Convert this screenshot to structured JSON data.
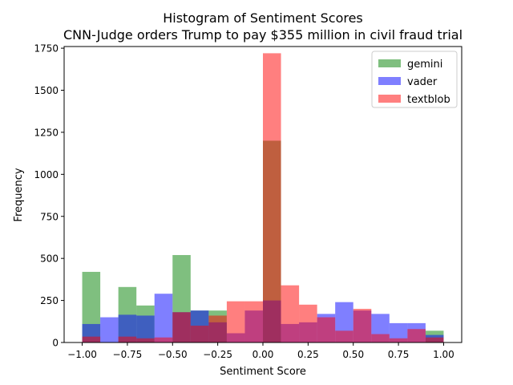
{
  "chart_data": {
    "type": "histogram",
    "title_line1": "Histogram of Sentiment Scores",
    "title_line2": "CNN-Judge orders Trump to pay $355 million in civil fraud trial",
    "xlabel": "Sentiment Score",
    "ylabel": "Frequency",
    "xlim": [
      -1.1,
      1.1
    ],
    "ylim": [
      0,
      1760
    ],
    "xticks": [
      -1.0,
      -0.75,
      -0.5,
      -0.25,
      0.0,
      0.25,
      0.5,
      0.75,
      1.0
    ],
    "xtick_labels": [
      "−1.00",
      "−0.75",
      "−0.50",
      "−0.25",
      "0.00",
      "0.25",
      "0.50",
      "0.75",
      "1.00"
    ],
    "yticks": [
      0,
      250,
      500,
      750,
      1000,
      1250,
      1500,
      1750
    ],
    "ytick_labels": [
      "0",
      "250",
      "500",
      "750",
      "1000",
      "1250",
      "1500",
      "1750"
    ],
    "legend_position": "top-right",
    "series": [
      {
        "name": "gemini",
        "color": "#008000",
        "opacity": 0.5,
        "bin_edges": [
          -1.0,
          -0.9,
          -0.8,
          -0.7,
          -0.6,
          -0.5,
          -0.4,
          -0.3,
          -0.2,
          -0.1,
          0.0,
          0.1,
          0.2,
          0.3,
          0.4,
          0.5,
          0.6,
          0.7,
          0.8,
          0.9,
          1.0
        ],
        "counts": [
          420,
          0,
          330,
          220,
          0,
          520,
          190,
          190,
          0,
          0,
          1200,
          0,
          0,
          0,
          0,
          0,
          0,
          0,
          0,
          70
        ]
      },
      {
        "name": "vader",
        "color": "#0000ff",
        "opacity": 0.5,
        "bin_edges": [
          -1.0,
          -0.9,
          -0.8,
          -0.7,
          -0.6,
          -0.5,
          -0.4,
          -0.3,
          -0.2,
          -0.1,
          0.0,
          0.1,
          0.2,
          0.3,
          0.4,
          0.5,
          0.6,
          0.7,
          0.8,
          0.9,
          1.0
        ],
        "counts": [
          110,
          150,
          165,
          160,
          290,
          180,
          190,
          120,
          55,
          190,
          250,
          110,
          120,
          170,
          240,
          190,
          170,
          115,
          115,
          45
        ]
      },
      {
        "name": "textblob",
        "color": "#ff0000",
        "opacity": 0.5,
        "bin_edges": [
          -1.0,
          -0.9,
          -0.8,
          -0.7,
          -0.6,
          -0.5,
          -0.4,
          -0.3,
          -0.2,
          -0.1,
          0.0,
          0.1,
          0.2,
          0.3,
          0.4,
          0.5,
          0.6,
          0.7,
          0.8,
          0.9,
          1.0
        ],
        "counts": [
          35,
          0,
          35,
          25,
          30,
          180,
          100,
          160,
          245,
          245,
          1720,
          340,
          225,
          150,
          70,
          200,
          50,
          25,
          80,
          30
        ]
      }
    ]
  }
}
